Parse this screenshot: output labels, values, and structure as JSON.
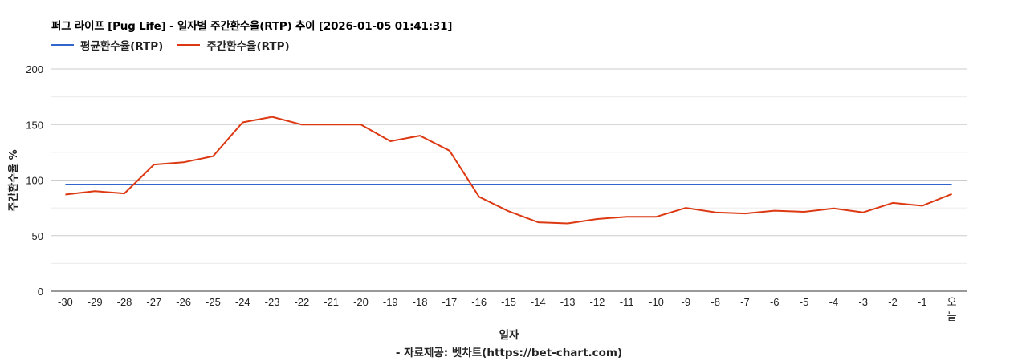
{
  "header": {
    "title": "퍼그 라이프 [Pug Life] - 일자별 주간환수율(RTP) 추이 [2026-01-05 01:41:31]"
  },
  "legend": [
    {
      "label": "평균환수율(RTP)",
      "color": "#3366cc"
    },
    {
      "label": "주간환수율(RTP)",
      "color": "#dc3912"
    }
  ],
  "footer": {
    "source": "- 자료제공: 벳차트(https://bet-chart.com)"
  },
  "chart_data": {
    "type": "line",
    "title": "퍼그 라이프 [Pug Life] - 일자별 주간환수율(RTP) 추이 [2026-01-05 01:41:31]",
    "xlabel": "일자",
    "ylabel": "주간환수율 %",
    "ylim": [
      0,
      200
    ],
    "yticks": [
      0,
      50,
      100,
      150,
      200
    ],
    "grid": true,
    "legend_position": "top",
    "categories": [
      "-30",
      "-29",
      "-28",
      "-27",
      "-26",
      "-25",
      "-24",
      "-23",
      "-22",
      "-21",
      "-20",
      "-19",
      "-18",
      "-17",
      "-16",
      "-15",
      "-14",
      "-13",
      "-12",
      "-11",
      "-10",
      "-9",
      "-8",
      "-7",
      "-6",
      "-5",
      "-4",
      "-3",
      "-2",
      "-1",
      "오늘"
    ],
    "series": [
      {
        "name": "평균환수율(RTP)",
        "color": "#3366cc",
        "values": [
          96,
          96,
          96,
          96,
          96,
          96,
          96,
          96,
          96,
          96,
          96,
          96,
          96,
          96,
          96,
          96,
          96,
          96,
          96,
          96,
          96,
          96,
          96,
          96,
          96,
          96,
          96,
          96,
          96,
          96,
          96
        ]
      },
      {
        "name": "주간환수율(RTP)",
        "color": "#dc3912",
        "values": [
          87,
          90,
          88,
          114,
          116,
          121.5,
          152,
          157,
          150,
          150,
          150,
          135,
          140,
          126.5,
          85,
          72,
          62,
          61,
          65,
          67,
          67,
          75,
          71,
          70,
          72.5,
          71.5,
          74.5,
          71,
          79.5,
          77,
          87.5
        ]
      }
    ]
  }
}
